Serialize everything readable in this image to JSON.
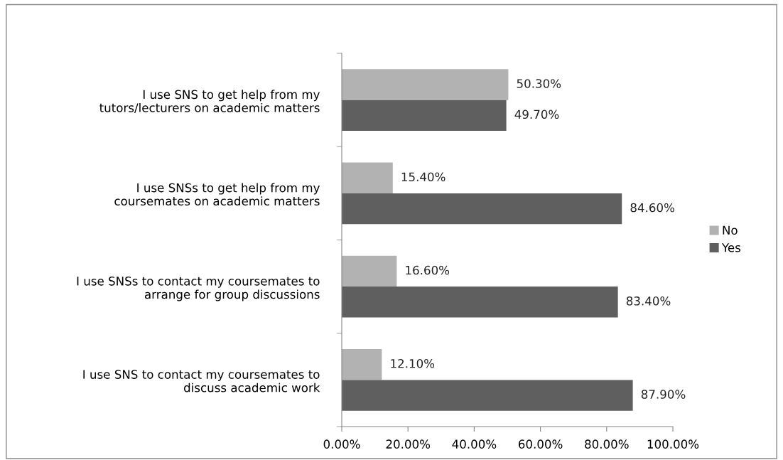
{
  "chart_data": {
    "type": "bar",
    "orientation": "horizontal",
    "categories": [
      "I use SNS to get help from my\ntutors/lecturers on academic matters",
      "I use SNSs to get help from my\ncoursemates on academic matters",
      "I use SNSs to contact my coursemates to\narrange for group discussions",
      "I use SNS to contact my coursemates to\ndiscuss academic work"
    ],
    "series": [
      {
        "name": "No",
        "color": "#b2b2b2",
        "values": [
          50.3,
          15.4,
          16.6,
          12.1
        ],
        "value_labels": [
          "50.30%",
          "15.40%",
          "16.60%",
          "12.10%"
        ]
      },
      {
        "name": "Yes",
        "color": "#5f5f5f",
        "values": [
          49.7,
          84.6,
          83.4,
          87.9
        ],
        "value_labels": [
          "49.70%",
          "84.60%",
          "83.40%",
          "87.90%"
        ]
      }
    ],
    "xlim": [
      0,
      100
    ],
    "xticks": [
      {
        "value": 0,
        "label": "0.00%"
      },
      {
        "value": 20,
        "label": "20.00%"
      },
      {
        "value": 40,
        "label": "40.00%"
      },
      {
        "value": 60,
        "label": "60.00%"
      },
      {
        "value": 80,
        "label": "80.00%"
      },
      {
        "value": 100,
        "label": "100.00%"
      }
    ],
    "grid": false,
    "legend": "right"
  }
}
